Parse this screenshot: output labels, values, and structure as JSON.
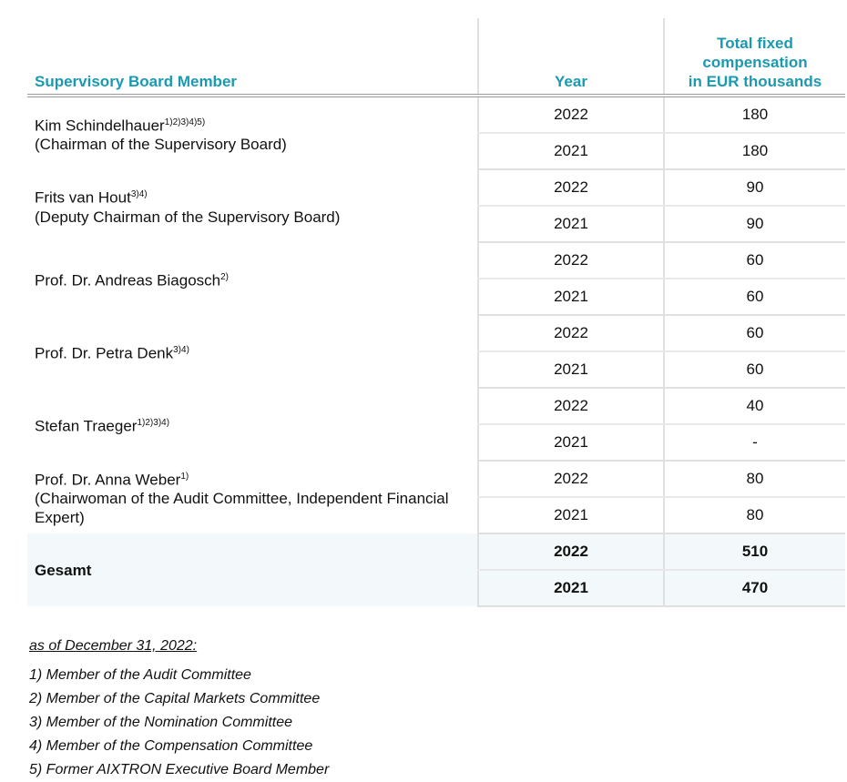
{
  "header": {
    "member": "Supervisory Board Member",
    "year": "Year",
    "comp_lines": [
      "Total fixed",
      "compensation",
      "in EUR thousands"
    ]
  },
  "members": [
    {
      "name": "Kim Schindelhauer",
      "sup": "1)2)3)4)5)",
      "role": "(Chairman of the Supervisory Board)",
      "rows": [
        {
          "year": "2022",
          "value": "180"
        },
        {
          "year": "2021",
          "value": "180"
        }
      ]
    },
    {
      "name": "Frits van Hout",
      "sup": "3)4)",
      "role": "(Deputy Chairman of the Supervisory Board)",
      "rows": [
        {
          "year": "2022",
          "value": "90"
        },
        {
          "year": "2021",
          "value": "90"
        }
      ]
    },
    {
      "name": "Prof. Dr. Andreas Biagosch",
      "sup": "2)",
      "role": "",
      "rows": [
        {
          "year": "2022",
          "value": "60"
        },
        {
          "year": "2021",
          "value": "60"
        }
      ]
    },
    {
      "name": "Prof. Dr. Petra Denk",
      "sup": "3)4)",
      "role": "",
      "rows": [
        {
          "year": "2022",
          "value": "60"
        },
        {
          "year": "2021",
          "value": "60"
        }
      ]
    },
    {
      "name": "Stefan Traeger",
      "sup": "1)2)3)4)",
      "role": "",
      "rows": [
        {
          "year": "2022",
          "value": "40"
        },
        {
          "year": "2021",
          "value": "-"
        }
      ]
    },
    {
      "name": "Prof. Dr. Anna Weber",
      "sup": "1)",
      "role": "(Chairwoman of the Audit Committee, Independent Financial Expert)",
      "rows": [
        {
          "year": "2022",
          "value": "80"
        },
        {
          "year": "2021",
          "value": "80"
        }
      ]
    }
  ],
  "total": {
    "label": "Gesamt",
    "rows": [
      {
        "year": "2022",
        "value": "510"
      },
      {
        "year": "2021",
        "value": "470"
      }
    ]
  },
  "notes": {
    "heading": "as of December 31, 2022:",
    "items": [
      "1) Member of the Audit Committee",
      "2) Member of the Capital Markets Committee",
      "3) Member of the Nomination Committee",
      "4) Member of the Compensation Committee",
      "5) Former AIXTRON Executive Board Member"
    ]
  }
}
